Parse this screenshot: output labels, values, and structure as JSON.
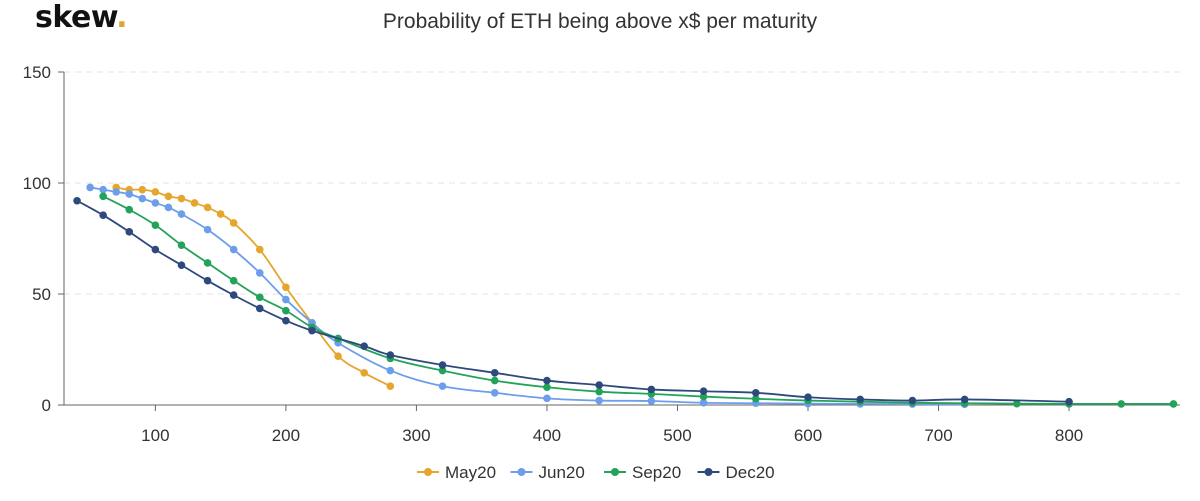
{
  "brand": {
    "name": "skew",
    "dot": "."
  },
  "chart_data": {
    "type": "line",
    "title": "Probability of ETH being above x$ per maturity",
    "xlabel": "",
    "ylabel": "",
    "xlim": [
      30,
      885
    ],
    "ylim": [
      0,
      150
    ],
    "x_ticks": [
      100,
      200,
      300,
      400,
      500,
      600,
      700,
      800
    ],
    "y_ticks": [
      0,
      50,
      100,
      150
    ],
    "grid": "horizontal dashed",
    "legend_position": "bottom-center",
    "series": [
      {
        "name": "May20",
        "color": "#e5a62b",
        "points": [
          [
            70,
            98
          ],
          [
            80,
            97
          ],
          [
            90,
            97
          ],
          [
            100,
            96
          ],
          [
            110,
            94
          ],
          [
            120,
            93
          ],
          [
            130,
            91
          ],
          [
            140,
            89
          ],
          [
            150,
            86
          ],
          [
            160,
            82
          ],
          [
            180,
            70
          ],
          [
            200,
            53
          ],
          [
            220,
            37
          ],
          [
            240,
            22
          ],
          [
            260,
            14.5
          ],
          [
            280,
            8.5
          ]
        ]
      },
      {
        "name": "Jun20",
        "color": "#6d9eeb",
        "points": [
          [
            50,
            98
          ],
          [
            60,
            97
          ],
          [
            70,
            96
          ],
          [
            80,
            95
          ],
          [
            90,
            93
          ],
          [
            100,
            91
          ],
          [
            110,
            89
          ],
          [
            120,
            86
          ],
          [
            140,
            79
          ],
          [
            160,
            70
          ],
          [
            180,
            59.5
          ],
          [
            200,
            47.5
          ],
          [
            220,
            37
          ],
          [
            240,
            28
          ],
          [
            280,
            15.5
          ],
          [
            320,
            8.5
          ],
          [
            360,
            5.5
          ],
          [
            400,
            3
          ],
          [
            440,
            2
          ],
          [
            480,
            1.8
          ],
          [
            520,
            1
          ],
          [
            560,
            0.8
          ],
          [
            600,
            0.6
          ],
          [
            640,
            0.5
          ],
          [
            680,
            0.4
          ],
          [
            720,
            0.3
          ]
        ]
      },
      {
        "name": "Sep20",
        "color": "#23a35a",
        "points": [
          [
            60,
            94
          ],
          [
            80,
            88
          ],
          [
            100,
            81
          ],
          [
            120,
            72
          ],
          [
            140,
            64
          ],
          [
            160,
            56
          ],
          [
            180,
            48.5
          ],
          [
            200,
            42.5
          ],
          [
            220,
            35
          ],
          [
            240,
            30
          ],
          [
            280,
            21
          ],
          [
            320,
            15.5
          ],
          [
            360,
            11
          ],
          [
            400,
            8
          ],
          [
            440,
            6
          ],
          [
            480,
            5
          ],
          [
            520,
            3.8
          ],
          [
            560,
            2.8
          ],
          [
            600,
            2
          ],
          [
            640,
            1.5
          ],
          [
            680,
            1
          ],
          [
            720,
            0.8
          ],
          [
            760,
            0.6
          ],
          [
            800,
            0.5
          ],
          [
            840,
            0.5
          ],
          [
            880,
            0.5
          ]
        ]
      },
      {
        "name": "Dec20",
        "color": "#2e4a7d",
        "points": [
          [
            40,
            92
          ],
          [
            60,
            85.5
          ],
          [
            80,
            78
          ],
          [
            100,
            70
          ],
          [
            120,
            63
          ],
          [
            140,
            56
          ],
          [
            160,
            49.5
          ],
          [
            180,
            43.5
          ],
          [
            200,
            38
          ],
          [
            220,
            33.5
          ],
          [
            260,
            26.5
          ],
          [
            280,
            22.5
          ],
          [
            320,
            18
          ],
          [
            360,
            14.5
          ],
          [
            400,
            11
          ],
          [
            440,
            9
          ],
          [
            480,
            7
          ],
          [
            520,
            6.2
          ],
          [
            560,
            5.5
          ],
          [
            600,
            3.5
          ],
          [
            640,
            2.5
          ],
          [
            680,
            2
          ],
          [
            720,
            2.5
          ],
          [
            800,
            1.5
          ]
        ]
      }
    ]
  }
}
